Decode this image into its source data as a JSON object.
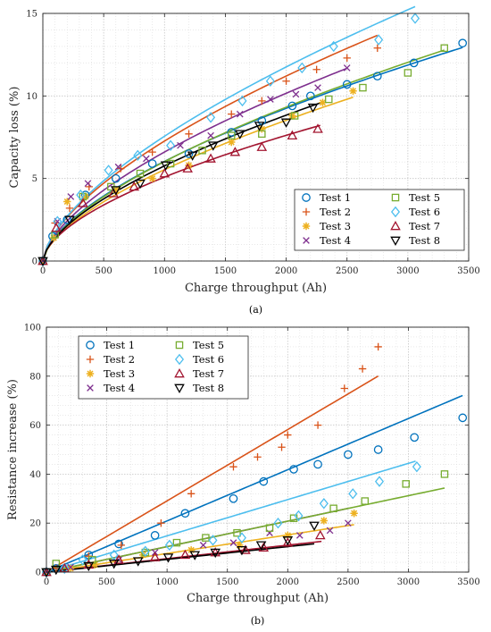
{
  "chart_data": [
    {
      "type": "scatter",
      "caption": "(a)",
      "xlabel": "Charge throughput (Ah)",
      "ylabel": "Capacity loss (%)",
      "xlim": [
        0,
        3500
      ],
      "ylim": [
        0,
        15
      ],
      "xticks": [
        0,
        500,
        1000,
        1500,
        2000,
        2500,
        3000,
        3500
      ],
      "yticks": [
        0,
        5,
        10,
        15
      ],
      "grid": true,
      "legend_position": "bottom-right",
      "fit": "power",
      "series": [
        {
          "name": "Test 1",
          "color": "#0072bd",
          "marker": "circle",
          "x": [
            0,
            80,
            200,
            350,
            600,
            900,
            1200,
            1550,
            1800,
            2050,
            2200,
            2500,
            2750,
            3050,
            3450
          ],
          "y": [
            0,
            1.5,
            2.5,
            4.0,
            5.0,
            5.9,
            6.5,
            7.8,
            8.5,
            9.4,
            10.0,
            10.7,
            11.2,
            12.0,
            13.2
          ],
          "fit": {
            "a": 0.0863,
            "b": 0.615,
            "xmax": 3450
          }
        },
        {
          "name": "Test 2",
          "color": "#d95319",
          "marker": "plus",
          "x": [
            0,
            100,
            220,
            380,
            640,
            900,
            1200,
            1550,
            1800,
            2000,
            2250,
            2500,
            2750
          ],
          "y": [
            0,
            2.3,
            3.2,
            4.5,
            5.6,
            6.6,
            7.7,
            8.9,
            9.7,
            10.9,
            11.6,
            12.3,
            12.9
          ],
          "fit": {
            "a": 0.0969,
            "b": 0.625,
            "xmax": 2750
          }
        },
        {
          "name": "Test 3",
          "color": "#edb120",
          "marker": "asterisk",
          "x": [
            0,
            90,
            200,
            350,
            600,
            900,
            1200,
            1550,
            1800,
            2050,
            2300,
            2550
          ],
          "y": [
            0,
            1.4,
            3.6,
            3.9,
            4.3,
            5.0,
            5.8,
            7.2,
            8.0,
            8.8,
            9.6,
            10.3
          ],
          "fit": {
            "a": 0.0743,
            "b": 0.624,
            "xmax": 2550
          }
        },
        {
          "name": "Test 4",
          "color": "#7e2f8e",
          "marker": "cross",
          "x": [
            0,
            120,
            230,
            370,
            620,
            850,
            1130,
            1380,
            1620,
            1870,
            2080,
            2260,
            2500
          ],
          "y": [
            0,
            2.4,
            3.9,
            4.7,
            5.7,
            6.2,
            7.0,
            7.6,
            8.9,
            9.8,
            10.1,
            10.5,
            11.7
          ],
          "fit": {
            "a": 0.0899,
            "b": 0.622,
            "xmax": 2500
          }
        },
        {
          "name": "Test 5",
          "color": "#77ac30",
          "marker": "square",
          "x": [
            0,
            100,
            330,
            560,
            800,
            1050,
            1310,
            1550,
            1800,
            2070,
            2350,
            2630,
            3000,
            3300
          ],
          "y": [
            0,
            1.6,
            3.9,
            4.5,
            5.3,
            5.9,
            6.7,
            7.6,
            7.7,
            8.8,
            9.8,
            10.5,
            11.4,
            12.9
          ],
          "fit": {
            "a": 0.0776,
            "b": 0.63,
            "xmax": 3300
          }
        },
        {
          "name": "Test 6",
          "color": "#4dbeee",
          "marker": "diamond",
          "x": [
            0,
            120,
            310,
            540,
            780,
            1050,
            1380,
            1640,
            1870,
            2130,
            2390,
            2760,
            3060
          ],
          "y": [
            0,
            2.4,
            4.0,
            5.5,
            6.4,
            7.0,
            8.7,
            9.7,
            10.9,
            11.7,
            13.0,
            13.4,
            14.7
          ],
          "fit": {
            "a": 0.0928,
            "b": 0.637,
            "xmax": 3060
          }
        },
        {
          "name": "Test 7",
          "color": "#a2142f",
          "marker": "triangle",
          "x": [
            0,
            110,
            330,
            580,
            750,
            1000,
            1190,
            1380,
            1580,
            1800,
            2050,
            2260
          ],
          "y": [
            0,
            2.0,
            3.5,
            4.1,
            4.5,
            5.3,
            5.6,
            6.2,
            6.6,
            6.9,
            7.6,
            8.0
          ],
          "fit": {
            "a": 0.0906,
            "b": 0.583,
            "xmax": 2280
          }
        },
        {
          "name": "Test 8",
          "color": "#000000",
          "marker": "triangle-down",
          "x": [
            0,
            220,
            600,
            800,
            1010,
            1230,
            1400,
            1620,
            1780,
            2000,
            2220
          ],
          "y": [
            0,
            2.5,
            4.3,
            4.7,
            5.8,
            6.4,
            7.0,
            7.7,
            8.2,
            8.4,
            9.3
          ],
          "fit": {
            "a": 0.0818,
            "b": 0.616,
            "xmax": 2280
          }
        }
      ]
    },
    {
      "type": "scatter",
      "caption": "(b)",
      "xlabel": "Charge throughput (Ah)",
      "ylabel": "Resistance increase (%)",
      "xlim": [
        0,
        3500
      ],
      "ylim": [
        0,
        100
      ],
      "xticks": [
        0,
        500,
        1000,
        1500,
        2000,
        2500,
        3000,
        3500
      ],
      "yticks": [
        0,
        20,
        40,
        60,
        80,
        100
      ],
      "grid": true,
      "legend_position": "top-left",
      "fit": "linear",
      "series": [
        {
          "name": "Test 1",
          "color": "#0072bd",
          "marker": "circle",
          "x": [
            0,
            80,
            350,
            600,
            900,
            1150,
            1550,
            1800,
            2050,
            2250,
            2500,
            2750,
            3050,
            3450
          ],
          "y": [
            0,
            1.5,
            7,
            11.5,
            15,
            24,
            30,
            37,
            42,
            44,
            48,
            50,
            55,
            63
          ],
          "fit": {
            "m": 0.0209,
            "c": 0,
            "xmax": 3450
          }
        },
        {
          "name": "Test 2",
          "color": "#d95319",
          "marker": "plus",
          "x": [
            0,
            80,
            350,
            620,
            950,
            1200,
            1550,
            1750,
            1950,
            2000,
            2250,
            2470,
            2620,
            2750
          ],
          "y": [
            0,
            1.5,
            6.5,
            11,
            20,
            32,
            43,
            47,
            51,
            56,
            60,
            75,
            83,
            92
          ],
          "fit": {
            "m": 0.0291,
            "c": 0,
            "xmax": 2750
          }
        },
        {
          "name": "Test 3",
          "color": "#edb120",
          "marker": "asterisk",
          "x": [
            0,
            200,
            400,
            800,
            1200,
            1600,
            2000,
            2300,
            2550
          ],
          "y": [
            0,
            1.5,
            3,
            7,
            9,
            11,
            15,
            21,
            24
          ],
          "fit": {
            "m": 0.0076,
            "c": 0,
            "xmax": 2550
          }
        },
        {
          "name": "Test 4",
          "color": "#7e2f8e",
          "marker": "cross",
          "x": [
            0,
            200,
            600,
            900,
            1300,
            1550,
            1850,
            2100,
            2350,
            2500
          ],
          "y": [
            0,
            2,
            5,
            8,
            11,
            12,
            16,
            15,
            17,
            20
          ],
          "fit": {
            "m": 0.0104,
            "c": 0,
            "xmax": 2500
          }
        },
        {
          "name": "Test 5",
          "color": "#77ac30",
          "marker": "square",
          "x": [
            0,
            80,
            380,
            820,
            1080,
            1320,
            1580,
            1850,
            2050,
            2380,
            2640,
            2980,
            3300
          ],
          "y": [
            0,
            3.5,
            5,
            8,
            12,
            14,
            16,
            18,
            22,
            26,
            29,
            36,
            40
          ],
          "fit": {
            "m": 0.0104,
            "c": 0,
            "xmax": 3300
          }
        },
        {
          "name": "Test 6",
          "color": "#4dbeee",
          "marker": "diamond",
          "x": [
            0,
            150,
            300,
            560,
            820,
            1020,
            1380,
            1620,
            1920,
            2090,
            2300,
            2540,
            2760,
            3070
          ],
          "y": [
            0,
            1.5,
            5,
            7,
            8.5,
            11,
            13,
            14,
            20,
            23,
            28,
            32,
            37,
            43
          ],
          "fit": {
            "m": 0.0148,
            "c": 0,
            "xmax": 3060
          }
        },
        {
          "name": "Test 7",
          "color": "#a2142f",
          "marker": "triangle",
          "x": [
            0,
            150,
            350,
            600,
            900,
            1150,
            1400,
            1650,
            1800,
            2000,
            2270
          ],
          "y": [
            0,
            1.5,
            3,
            5,
            6,
            7,
            8,
            9,
            10,
            12,
            15
          ],
          "fit": {
            "m": 0.0055,
            "c": 0,
            "xmax": 2280
          }
        },
        {
          "name": "Test 8",
          "color": "#000000",
          "marker": "triangle-down",
          "x": [
            0,
            80,
            350,
            560,
            760,
            1010,
            1230,
            1400,
            1620,
            1780,
            2000,
            2220
          ],
          "y": [
            0,
            1,
            2.5,
            3.5,
            4.5,
            6,
            7,
            8,
            9,
            11,
            13,
            19
          ],
          "fit": {
            "m": 0.0052,
            "c": 0,
            "xmax": 2220
          }
        }
      ]
    }
  ]
}
